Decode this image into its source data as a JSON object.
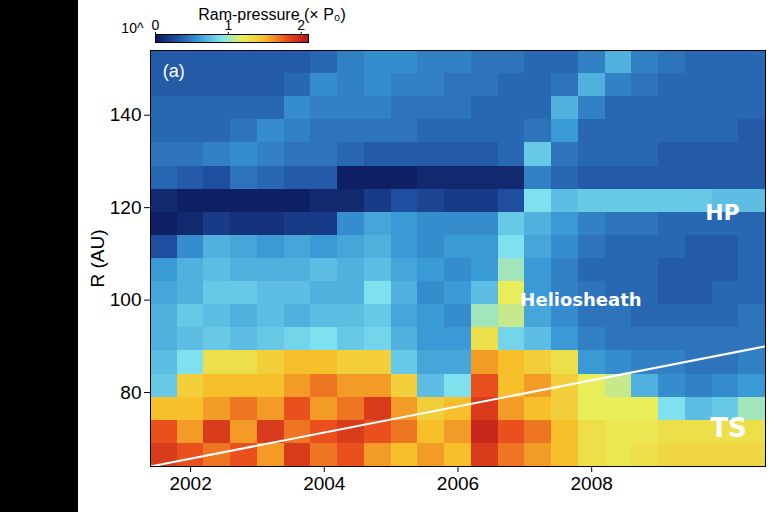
{
  "chart_data": {
    "type": "heatmap",
    "y_label": "R (AU)",
    "xlim": [
      2001.4,
      2010.6
    ],
    "xticks": [
      2002,
      2004,
      2006,
      2008
    ],
    "ylim": [
      64,
      154
    ],
    "yticks": [
      80,
      100,
      120,
      140
    ],
    "colorbar": {
      "label": "Ram-pressure (× P₀)",
      "prefix": "10^",
      "range": [
        0,
        2.1
      ],
      "ticks": [
        0,
        1,
        2
      ]
    },
    "panel_label": "(a)",
    "annotations": [
      "HP",
      "Heliosheath",
      "TS"
    ],
    "white_line": {
      "x": [
        2001.4,
        2010.6
      ],
      "y": [
        64,
        90
      ]
    },
    "cells": {
      "x": [
        2001.6,
        2002.0,
        2002.4,
        2002.8,
        2003.2,
        2003.6,
        2004.0,
        2004.4,
        2004.8,
        2005.2,
        2005.6,
        2006.0,
        2006.4,
        2006.8,
        2007.2,
        2007.6,
        2008.0,
        2008.4,
        2008.8,
        2009.2,
        2009.6,
        2010.0,
        2010.4
      ],
      "y": [
        66.5,
        71.5,
        76.5,
        81.5,
        86.5,
        91.5,
        96.5,
        101.5,
        106.5,
        111.5,
        116.5,
        121.5,
        126.5,
        131.5,
        136.5,
        141.5,
        146.5,
        151.5
      ],
      "values": [
        [
          1.9,
          1.8,
          1.5,
          0.8,
          0.75,
          0.7,
          0.7,
          0.65,
          0.6,
          0.3,
          0.05,
          0.1,
          0.4,
          0.45,
          0.4,
          0.4,
          0.35,
          0.35
        ],
        [
          1.8,
          1.6,
          1.5,
          1.4,
          0.9,
          0.75,
          0.8,
          0.7,
          0.7,
          0.55,
          0.1,
          0.05,
          0.35,
          0.45,
          0.4,
          0.4,
          0.35,
          0.35
        ],
        [
          1.7,
          1.9,
          1.6,
          1.5,
          1.3,
          0.8,
          0.75,
          0.8,
          0.75,
          0.7,
          0.2,
          0.05,
          0.3,
          0.5,
          0.4,
          0.4,
          0.35,
          0.35
        ],
        [
          1.8,
          1.6,
          1.7,
          1.5,
          1.3,
          0.75,
          0.7,
          0.8,
          0.7,
          0.65,
          0.15,
          0.05,
          0.45,
          0.55,
          0.45,
          0.4,
          0.35,
          0.35
        ],
        [
          1.6,
          1.9,
          1.6,
          1.5,
          1.4,
          0.8,
          0.75,
          0.75,
          0.7,
          0.6,
          0.15,
          0.05,
          0.4,
          0.5,
          0.55,
          0.4,
          0.35,
          0.35
        ],
        [
          1.9,
          1.7,
          1.8,
          1.6,
          1.5,
          0.85,
          0.7,
          0.75,
          0.7,
          0.65,
          0.2,
          0.05,
          0.35,
          0.45,
          0.5,
          0.55,
          0.4,
          0.35
        ],
        [
          1.7,
          1.8,
          1.6,
          1.7,
          1.5,
          0.9,
          0.75,
          0.7,
          0.75,
          0.6,
          0.2,
          0.1,
          0.35,
          0.45,
          0.45,
          0.5,
          0.55,
          0.4
        ],
        [
          1.8,
          1.9,
          1.7,
          1.6,
          1.4,
          0.8,
          0.75,
          0.7,
          0.7,
          0.65,
          0.55,
          0.1,
          0.05,
          0.4,
          0.45,
          0.5,
          0.5,
          0.5
        ],
        [
          1.6,
          1.8,
          1.9,
          1.6,
          1.4,
          0.85,
          0.8,
          0.9,
          0.75,
          0.7,
          0.65,
          0.2,
          0.05,
          0.35,
          0.45,
          0.5,
          0.55,
          0.55
        ],
        [
          1.5,
          1.7,
          1.6,
          1.4,
          0.8,
          0.7,
          0.65,
          0.7,
          0.65,
          0.6,
          0.6,
          0.3,
          0.05,
          0.35,
          0.45,
          0.45,
          0.5,
          0.55
        ],
        [
          1.6,
          1.5,
          1.4,
          0.75,
          0.65,
          0.6,
          0.6,
          0.55,
          0.6,
          0.55,
          0.55,
          0.25,
          0.1,
          0.35,
          0.4,
          0.45,
          0.5,
          0.5
        ],
        [
          1.5,
          1.6,
          1.5,
          0.9,
          0.65,
          0.6,
          0.55,
          0.6,
          0.55,
          0.6,
          0.55,
          0.2,
          0.1,
          0.35,
          0.4,
          0.45,
          0.45,
          0.5
        ],
        [
          1.9,
          2.0,
          1.9,
          1.8,
          1.6,
          1.3,
          1.0,
          0.75,
          0.6,
          0.6,
          0.55,
          0.2,
          0.1,
          0.35,
          0.4,
          0.4,
          0.45,
          0.45
        ],
        [
          1.7,
          1.8,
          1.6,
          1.5,
          1.5,
          0.85,
          1.1,
          1.2,
          1.0,
          0.9,
          0.8,
          0.3,
          0.1,
          0.4,
          0.4,
          0.4,
          0.4,
          0.45
        ],
        [
          1.6,
          1.7,
          1.5,
          1.6,
          1.4,
          0.75,
          0.65,
          0.6,
          0.6,
          0.65,
          0.7,
          0.9,
          0.5,
          0.8,
          0.45,
          0.4,
          0.4,
          0.4
        ],
        [
          1.5,
          1.5,
          1.4,
          1.4,
          1.3,
          0.6,
          0.55,
          0.5,
          0.5,
          0.55,
          0.6,
          0.75,
          0.4,
          0.45,
          0.6,
          0.7,
          0.45,
          0.4
        ],
        [
          1.3,
          1.3,
          1.2,
          1.2,
          0.6,
          0.5,
          0.45,
          0.45,
          0.4,
          0.45,
          0.5,
          0.8,
          0.35,
          0.4,
          0.4,
          0.5,
          0.7,
          0.5
        ],
        [
          1.25,
          1.25,
          1.2,
          1.1,
          0.55,
          0.45,
          0.45,
          0.4,
          0.4,
          0.4,
          0.45,
          0.8,
          0.35,
          0.4,
          0.4,
          0.4,
          0.5,
          0.7
        ],
        [
          1.3,
          1.25,
          1.2,
          0.7,
          0.5,
          0.45,
          0.4,
          0.4,
          0.4,
          0.4,
          0.45,
          0.8,
          0.35,
          0.4,
          0.4,
          0.4,
          0.45,
          0.5
        ],
        [
          1.35,
          1.3,
          0.9,
          0.55,
          0.5,
          0.45,
          0.4,
          0.35,
          0.35,
          0.4,
          0.4,
          0.8,
          0.35,
          0.35,
          0.4,
          0.4,
          0.4,
          0.45
        ],
        [
          1.35,
          1.3,
          0.75,
          0.5,
          0.45,
          0.45,
          0.4,
          0.35,
          0.35,
          0.35,
          0.4,
          0.8,
          0.35,
          0.35,
          0.4,
          0.4,
          0.4,
          0.4
        ],
        [
          1.35,
          1.3,
          0.8,
          0.55,
          0.45,
          0.45,
          0.4,
          0.4,
          0.35,
          0.35,
          0.4,
          0.75,
          0.35,
          0.35,
          0.4,
          0.4,
          0.4,
          0.4
        ],
        [
          1.35,
          1.3,
          1.0,
          0.6,
          0.5,
          0.45,
          0.45,
          0.4,
          0.4,
          0.4,
          0.4,
          0.75,
          0.35,
          0.35,
          0.35,
          0.4,
          0.4,
          0.4
        ]
      ]
    }
  }
}
